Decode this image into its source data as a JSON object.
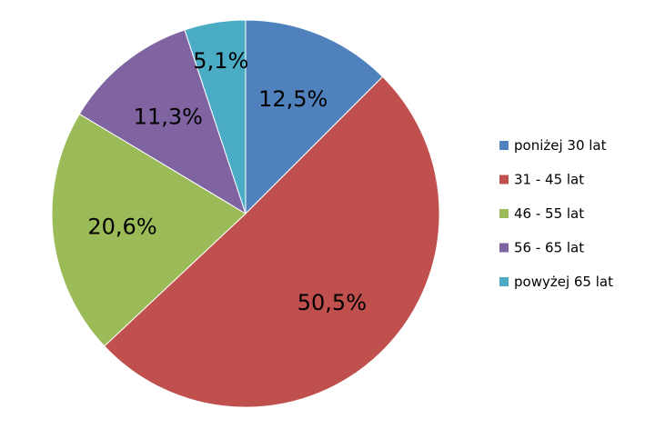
{
  "chart_data": {
    "type": "pie",
    "categories": [
      "poniżej 30 lat",
      "31 - 45 lat",
      "46 - 55 lat",
      "56 - 65 lat",
      "powyżej 65 lat"
    ],
    "values": [
      12.5,
      50.5,
      20.6,
      11.3,
      5.1
    ],
    "data_labels": [
      "12,5%",
      "50,5%",
      "20,6%",
      "11,3%",
      "5,1%"
    ],
    "colors": [
      "#4f81bd",
      "#c0504d",
      "#9bbb59",
      "#8064a2",
      "#4bacc6"
    ],
    "legend": {
      "position": "right",
      "entries": [
        "poniżej 30 lat",
        "31 - 45 lat",
        "46 - 55 lat",
        "56 - 65 lat",
        "powyżej 65 lat"
      ]
    }
  }
}
